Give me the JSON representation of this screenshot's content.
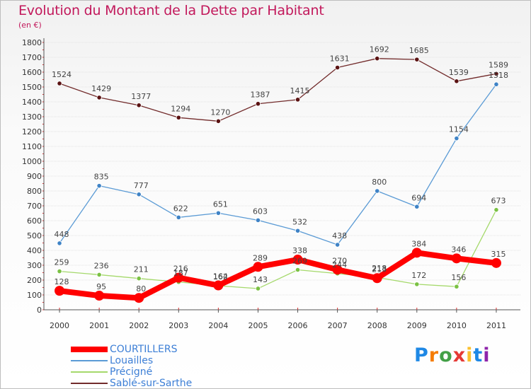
{
  "header": {
    "title": "Evolution du Montant de la Dette par Habitant",
    "subtitle": "(en €)"
  },
  "logo": {
    "parts": [
      "P",
      "r",
      "o",
      "x",
      "i",
      "t",
      "i"
    ],
    "colors": [
      "#1e88e5",
      "#f57c00",
      "#43a047",
      "#e53935",
      "#fbc02d",
      "#1e88e5",
      "#8e24aa"
    ]
  },
  "chart_data": {
    "type": "line",
    "title": "Evolution du Montant de la Dette par Habitant",
    "ylabel": "(en €)",
    "xlabel": "",
    "ylim": [
      0,
      1800
    ],
    "yticks": [
      0,
      100,
      200,
      300,
      400,
      500,
      600,
      700,
      800,
      900,
      1000,
      1100,
      1200,
      1300,
      1400,
      1500,
      1600,
      1700,
      1800
    ],
    "categories": [
      "2000",
      "2001",
      "2002",
      "2003",
      "2004",
      "2005",
      "2006",
      "2007",
      "2008",
      "2009",
      "2010",
      "2011"
    ],
    "grid": true,
    "series": [
      {
        "name": "Sablé-sur-Sarthe",
        "color": "#722b2b",
        "marker": "#5a1212",
        "values": [
          1524,
          1429,
          1377,
          1294,
          1270,
          1387,
          1415,
          1631,
          1692,
          1685,
          1539,
          1589
        ],
        "labels": [
          "1524",
          "1429",
          "1377",
          "1294",
          "1270",
          "1387",
          "1415",
          "1631",
          "1692",
          "1685",
          "1539",
          "1589"
        ]
      },
      {
        "name": "Louailles",
        "color": "#5b9bd5",
        "marker": "#3f83c6",
        "values": [
          448,
          835,
          777,
          622,
          651,
          603,
          532,
          438,
          800,
          694,
          1154,
          1518
        ],
        "labels": [
          "448",
          "835",
          "777",
          "622",
          "651",
          "603",
          "532",
          "438",
          "800",
          "694",
          "1154",
          "1518"
        ]
      },
      {
        "name": "Précigné",
        "color": "#a5d96b",
        "marker": "#7ac143",
        "values": [
          259,
          236,
          211,
          187,
          162,
          143,
          269,
          244,
          218,
          172,
          156,
          673
        ],
        "labels": [
          "259",
          "236",
          "211",
          "187",
          "162",
          "143",
          "269",
          "244",
          "218",
          "172",
          "156",
          "673"
        ]
      },
      {
        "name": "COURTILLERS",
        "color": "#ff0000",
        "marker": "#ff0000",
        "values": [
          128,
          95,
          80,
          216,
          164,
          289,
          338,
          270,
          213,
          384,
          346,
          315
        ],
        "labels": [
          "128",
          "95",
          "80",
          "216",
          "164",
          "289",
          "338",
          "270",
          "213",
          "384",
          "346",
          "315"
        ]
      }
    ],
    "legend": [
      "COURTILLERS",
      "Louailles",
      "Précigné",
      "Sablé-sur-Sarthe"
    ]
  }
}
